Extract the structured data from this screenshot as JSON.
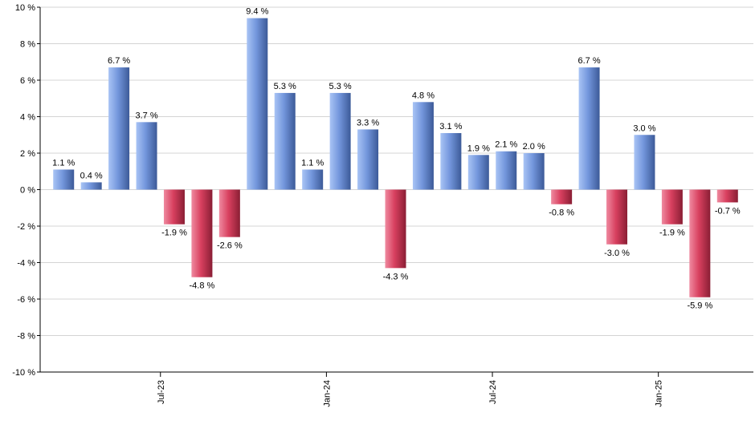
{
  "chart_data": {
    "type": "bar",
    "title": "",
    "xlabel": "",
    "ylabel": "",
    "ylim": [
      -10,
      10
    ],
    "y_ticks": [
      -10,
      -8,
      -6,
      -4,
      -2,
      0,
      2,
      4,
      6,
      8,
      10
    ],
    "y_tick_suffix": " %",
    "grid": true,
    "value_labels": true,
    "value_label_suffix": " %",
    "x_tick_labels": [
      {
        "label": "Jul-23",
        "index": 3.5
      },
      {
        "label": "Jan-24",
        "index": 9.5
      },
      {
        "label": "Jul-24",
        "index": 15.5
      },
      {
        "label": "Jan-25",
        "index": 21.5
      }
    ],
    "values": [
      1.1,
      0.4,
      6.7,
      3.7,
      -1.9,
      -4.8,
      -2.6,
      9.4,
      5.3,
      1.1,
      5.3,
      3.3,
      -4.3,
      4.8,
      3.1,
      1.9,
      2.1,
      2.0,
      -0.8,
      6.7,
      -3.0,
      3.0,
      -1.9,
      -5.9,
      -0.7
    ],
    "colors": {
      "positive_light": "#a9c4f5",
      "positive_mid": "#7396dc",
      "positive_dark": "#3c5a98",
      "negative_light": "#ef8aa0",
      "negative_mid": "#d8405f",
      "negative_dark": "#8a1e34",
      "grid": "#d4d4d4",
      "axis": "#000000"
    }
  }
}
